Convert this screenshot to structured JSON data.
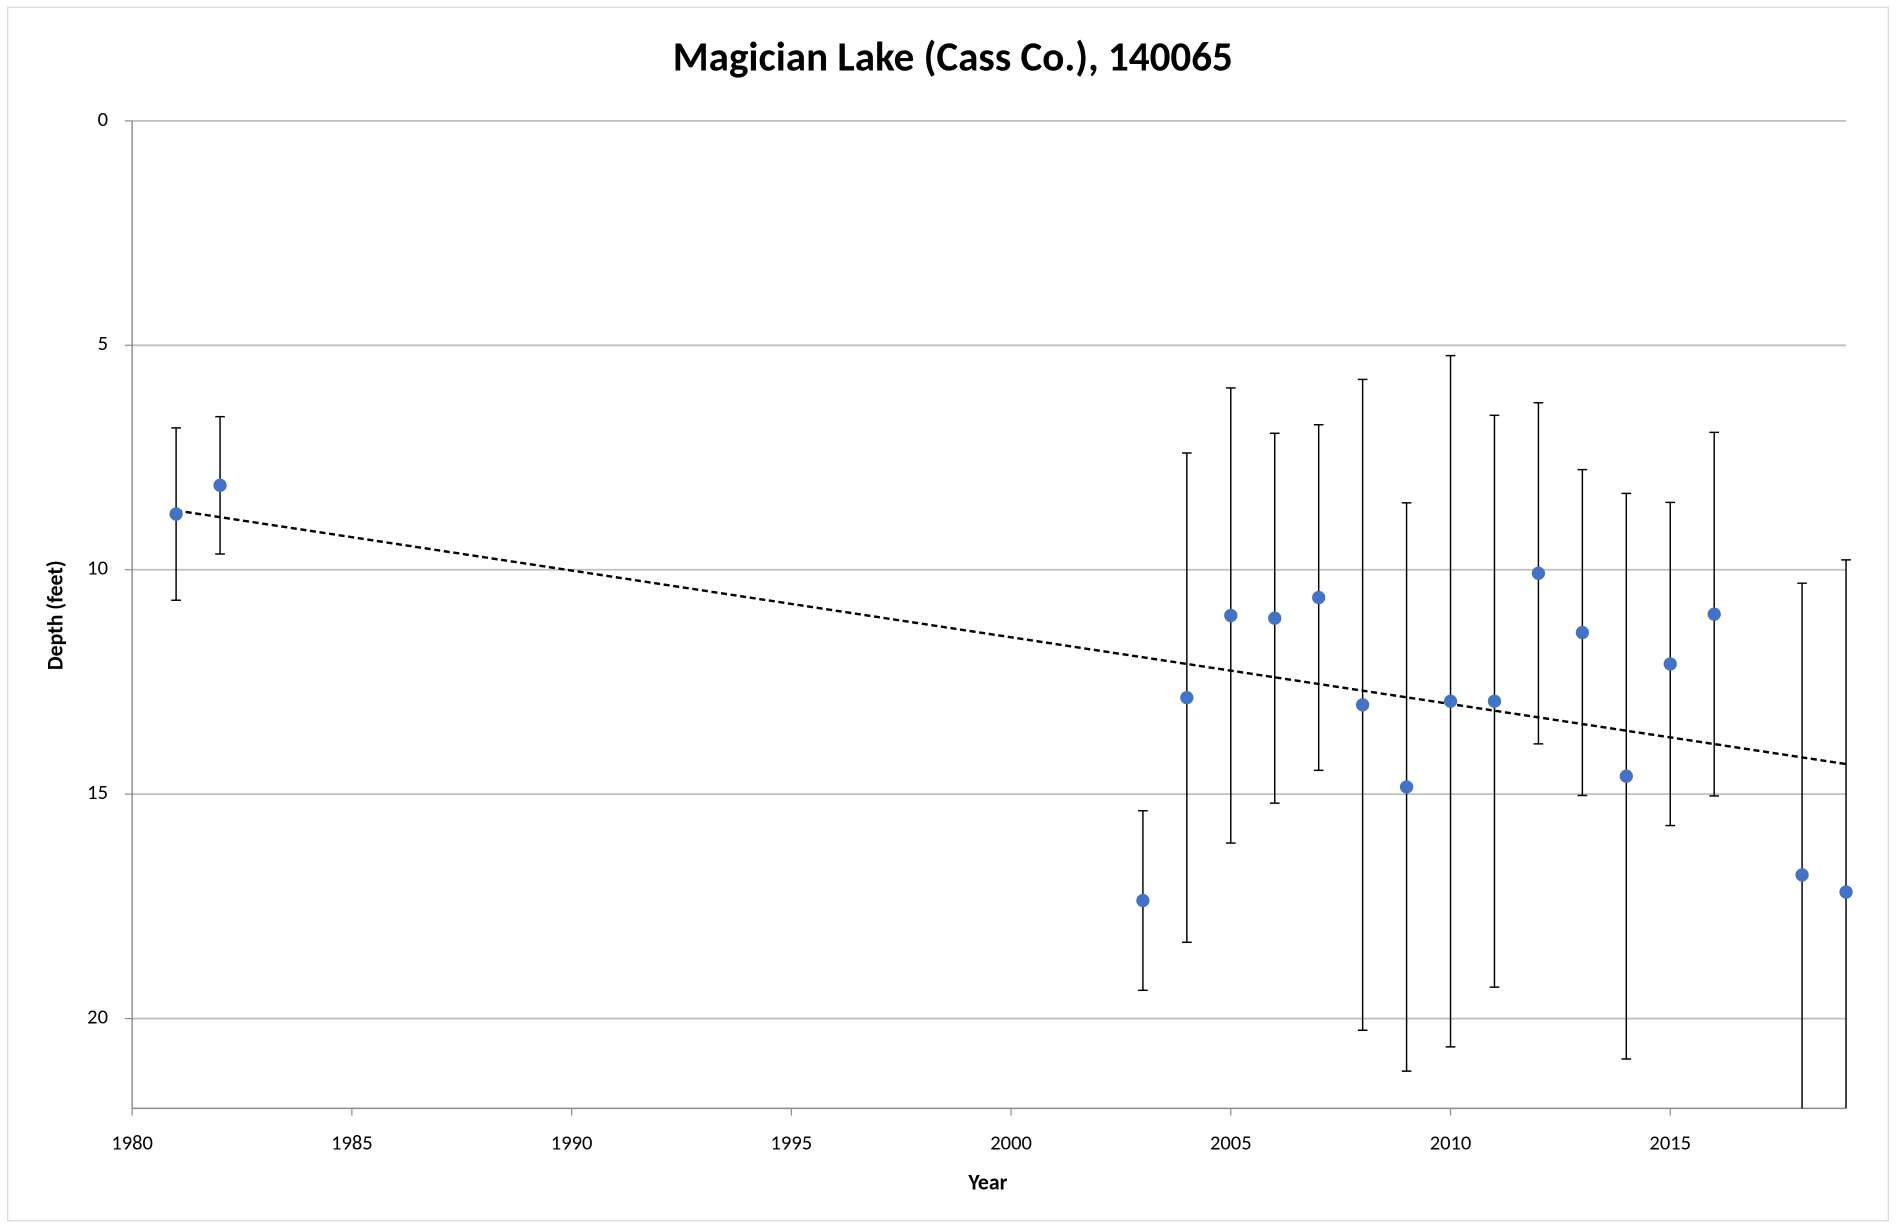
{
  "chart_data": {
    "type": "scatter",
    "title": "Magician Lake (Cass Co.), 140065",
    "x_label": "Year",
    "y_label": "Depth (feet)",
    "xlim": [
      1980,
      2019
    ],
    "xticks": [
      1980,
      1985,
      1990,
      1995,
      2000,
      2005,
      2010,
      2015
    ],
    "ylim": [
      0,
      22
    ],
    "yticks": [
      0,
      5,
      10,
      15,
      20
    ],
    "y_inverted": true,
    "grid": true,
    "series": [
      {
        "name": "Depth",
        "color": "#4472c4",
        "x": [
          1981,
          1982,
          2003,
          2004,
          2005,
          2006,
          2007,
          2008,
          2009,
          2010,
          2011,
          2012,
          2013,
          2014,
          2015,
          2016,
          2018,
          2019
        ],
        "values": [
          8.76,
          8.12,
          17.37,
          12.85,
          11.02,
          11.08,
          10.62,
          13.01,
          14.84,
          12.93,
          12.93,
          10.08,
          11.4,
          14.6,
          12.1,
          10.99,
          16.8,
          17.18
        ],
        "errors": [
          1.92,
          1.53,
          2.0,
          5.45,
          5.07,
          4.12,
          3.85,
          7.25,
          6.33,
          7.7,
          6.37,
          3.8,
          3.63,
          6.3,
          3.6,
          4.05,
          6.5,
          7.4
        ]
      }
    ],
    "trendline": {
      "x": [
        1981,
        2019
      ],
      "values": [
        8.68,
        14.33
      ],
      "color": "#000000"
    }
  }
}
